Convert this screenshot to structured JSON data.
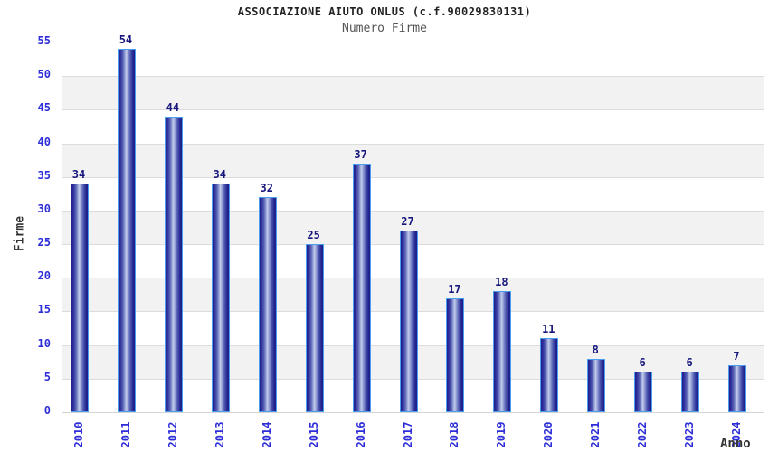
{
  "chart_data": {
    "type": "bar",
    "title": "ASSOCIAZIONE AIUTO ONLUS (c.f.90029830131)",
    "subtitle": "Numero Firme",
    "xlabel": "Anno",
    "ylabel": "Firme",
    "categories": [
      "2010",
      "2011",
      "2012",
      "2013",
      "2014",
      "2015",
      "2016",
      "2017",
      "2018",
      "2019",
      "2020",
      "2021",
      "2022",
      "2023",
      "2024"
    ],
    "values": [
      34,
      54,
      44,
      34,
      32,
      25,
      37,
      27,
      17,
      18,
      11,
      8,
      6,
      6,
      7
    ],
    "ylim": [
      0,
      55
    ],
    "ytick_step": 5,
    "grid": true,
    "alternating_bands": true,
    "legend": "none",
    "colors": {
      "bar_edge_dark": "#1f1f8b",
      "bar_center_light": "#c4cdec",
      "bar_border": "#4a9ef0",
      "tick_text": "#2d2dd9",
      "value_text": "#16167d",
      "band_fill": "#f2f2f2",
      "gridline": "#dcdcdc",
      "title_text": "#222222",
      "subtitle_text": "#555555",
      "axis_title_text": "#333333"
    }
  }
}
